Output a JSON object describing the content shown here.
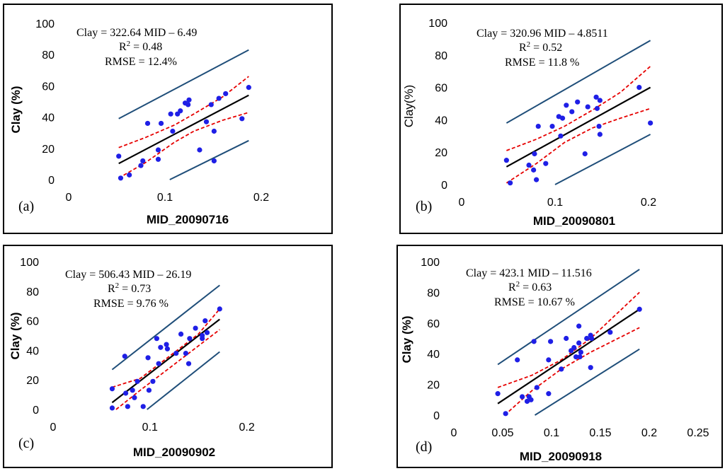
{
  "chart_data": [
    {
      "type": "scatter",
      "panel_label": "(a)",
      "xlabel": "MID_20090716",
      "ylabel": "Clay (%)",
      "ylabel_bold": true,
      "xlim": [
        0,
        0.25
      ],
      "ylim": [
        0,
        100
      ],
      "xticks": [
        "0",
        "0.1",
        "0.2"
      ],
      "xtick_values": [
        0,
        0.1,
        0.2
      ],
      "yticks": [
        "0",
        "20",
        "40",
        "60",
        "80",
        "100"
      ],
      "ytick_values": [
        0,
        20,
        40,
        60,
        80,
        100
      ],
      "annotation": {
        "line1": "Clay = 322.64 MID – 6.49",
        "line2_prefix": "R",
        "line2_sup": "2",
        "line2_suffix": "= 0.48",
        "line3": "RMSE = 12.4%"
      },
      "points": [
        [
          0.052,
          15
        ],
        [
          0.054,
          1
        ],
        [
          0.063,
          3
        ],
        [
          0.075,
          9
        ],
        [
          0.077,
          12
        ],
        [
          0.082,
          36
        ],
        [
          0.093,
          13
        ],
        [
          0.093,
          19
        ],
        [
          0.096,
          36
        ],
        [
          0.106,
          42
        ],
        [
          0.108,
          31
        ],
        [
          0.113,
          42
        ],
        [
          0.116,
          44
        ],
        [
          0.121,
          49
        ],
        [
          0.124,
          48
        ],
        [
          0.125,
          51
        ],
        [
          0.136,
          19
        ],
        [
          0.143,
          37
        ],
        [
          0.148,
          48
        ],
        [
          0.151,
          31
        ],
        [
          0.151,
          12
        ],
        [
          0.156,
          52
        ],
        [
          0.163,
          55
        ],
        [
          0.18,
          39
        ],
        [
          0.187,
          59
        ]
      ],
      "fit": [
        [
          0.052,
          10.3
        ],
        [
          0.187,
          54
        ]
      ],
      "ci_upper": [
        [
          0.052,
          20.5
        ],
        [
          0.08,
          27
        ],
        [
          0.11,
          35
        ],
        [
          0.13,
          42
        ],
        [
          0.16,
          53
        ],
        [
          0.187,
          66
        ]
      ],
      "ci_lower": [
        [
          0.052,
          1
        ],
        [
          0.08,
          11
        ],
        [
          0.11,
          24
        ],
        [
          0.13,
          31
        ],
        [
          0.16,
          38
        ],
        [
          0.187,
          43
        ]
      ],
      "pi_upper": [
        [
          0.052,
          39
        ],
        [
          0.187,
          83
        ]
      ],
      "pi_lower": [
        [
          0.105,
          0
        ],
        [
          0.187,
          25
        ]
      ],
      "colors": {
        "points": "#1f1fe6",
        "fit": "#000000",
        "ci": "#e60000",
        "pi": "#1f4e79"
      }
    },
    {
      "type": "scatter",
      "panel_label": "(b)",
      "xlabel": "MID_20090801",
      "ylabel": "Clay(%)",
      "ylabel_bold": false,
      "xlim": [
        0,
        0.25
      ],
      "ylim": [
        0,
        100
      ],
      "xticks": [
        "0",
        "0.1",
        "0.2"
      ],
      "xtick_values": [
        0,
        0.1,
        0.2
      ],
      "yticks": [
        "0",
        "20",
        "40",
        "60",
        "80",
        "100"
      ],
      "ytick_values": [
        0,
        20,
        40,
        60,
        80,
        100
      ],
      "annotation": {
        "line1": "Clay = 320.96 MID – 4.8511",
        "line2_prefix": "R",
        "line2_sup": "2",
        "line2_suffix": "= 0.52",
        "line3": "RMSE = 11.8 %"
      },
      "points": [
        [
          0.048,
          15
        ],
        [
          0.052,
          1
        ],
        [
          0.072,
          12
        ],
        [
          0.077,
          9
        ],
        [
          0.078,
          19
        ],
        [
          0.08,
          3
        ],
        [
          0.082,
          36
        ],
        [
          0.09,
          13
        ],
        [
          0.097,
          36
        ],
        [
          0.104,
          42
        ],
        [
          0.106,
          30
        ],
        [
          0.108,
          41
        ],
        [
          0.112,
          49
        ],
        [
          0.118,
          45
        ],
        [
          0.124,
          51
        ],
        [
          0.132,
          19
        ],
        [
          0.135,
          48
        ],
        [
          0.144,
          54
        ],
        [
          0.145,
          47
        ],
        [
          0.147,
          36
        ],
        [
          0.148,
          31
        ],
        [
          0.148,
          52
        ],
        [
          0.19,
          60
        ],
        [
          0.202,
          38
        ]
      ],
      "fit": [
        [
          0.048,
          11
        ],
        [
          0.202,
          60
        ]
      ],
      "ci_upper": [
        [
          0.048,
          21
        ],
        [
          0.08,
          28
        ],
        [
          0.11,
          36
        ],
        [
          0.14,
          46
        ],
        [
          0.17,
          57
        ],
        [
          0.202,
          73
        ]
      ],
      "ci_lower": [
        [
          0.048,
          1
        ],
        [
          0.08,
          13
        ],
        [
          0.11,
          26
        ],
        [
          0.14,
          35
        ],
        [
          0.17,
          41
        ],
        [
          0.202,
          47
        ]
      ],
      "pi_upper": [
        [
          0.048,
          38
        ],
        [
          0.202,
          89
        ]
      ],
      "pi_lower": [
        [
          0.1,
          0
        ],
        [
          0.202,
          31
        ]
      ],
      "colors": {
        "points": "#1f1fe6",
        "fit": "#000000",
        "ci": "#e60000",
        "pi": "#1f4e79"
      }
    },
    {
      "type": "scatter",
      "panel_label": "(c)",
      "xlabel": "MID_20090902",
      "ylabel": "Clay (%)",
      "ylabel_bold": true,
      "xlim": [
        0,
        0.25
      ],
      "ylim": [
        0,
        100
      ],
      "xticks": [
        "0",
        "0.1",
        "0.2"
      ],
      "xtick_values": [
        0,
        0.1,
        0.2
      ],
      "yticks": [
        "0",
        "20",
        "40",
        "60",
        "80",
        "100"
      ],
      "ytick_values": [
        0,
        20,
        40,
        60,
        80,
        100
      ],
      "annotation": {
        "line1": "Clay = 506.43 MID – 26.19",
        "line2_prefix": "R",
        "line2_sup": "2",
        "line2_suffix": "= 0.73",
        "line3": "RMSE = 9.76 %"
      },
      "points": [
        [
          0.061,
          14
        ],
        [
          0.061,
          1
        ],
        [
          0.074,
          36
        ],
        [
          0.075,
          11
        ],
        [
          0.077,
          2
        ],
        [
          0.082,
          13
        ],
        [
          0.084,
          8
        ],
        [
          0.087,
          19
        ],
        [
          0.093,
          2
        ],
        [
          0.098,
          35
        ],
        [
          0.099,
          13
        ],
        [
          0.103,
          19
        ],
        [
          0.107,
          48
        ],
        [
          0.109,
          31
        ],
        [
          0.111,
          42
        ],
        [
          0.117,
          44
        ],
        [
          0.118,
          41
        ],
        [
          0.127,
          38
        ],
        [
          0.132,
          51
        ],
        [
          0.137,
          38
        ],
        [
          0.14,
          31
        ],
        [
          0.141,
          48
        ],
        [
          0.147,
          55
        ],
        [
          0.154,
          48
        ],
        [
          0.154,
          50
        ],
        [
          0.157,
          60
        ],
        [
          0.159,
          52
        ],
        [
          0.172,
          68
        ]
      ],
      "fit": [
        [
          0.061,
          4.7
        ],
        [
          0.172,
          61
        ]
      ],
      "ci_upper": [
        [
          0.061,
          15
        ],
        [
          0.09,
          21
        ],
        [
          0.12,
          36
        ],
        [
          0.15,
          51
        ],
        [
          0.172,
          68
        ]
      ],
      "ci_lower": [
        [
          0.065,
          0
        ],
        [
          0.09,
          13
        ],
        [
          0.12,
          28
        ],
        [
          0.15,
          43
        ],
        [
          0.172,
          54
        ]
      ],
      "pi_upper": [
        [
          0.061,
          27
        ],
        [
          0.172,
          84
        ]
      ],
      "pi_lower": [
        [
          0.097,
          0
        ],
        [
          0.172,
          39
        ]
      ],
      "colors": {
        "points": "#1f1fe6",
        "fit": "#000000",
        "ci": "#e60000",
        "pi": "#1f4e79"
      }
    },
    {
      "type": "scatter",
      "panel_label": "(d)",
      "xlabel": "MID_20090918",
      "ylabel": "Clay (%)",
      "ylabel_bold": true,
      "xlim": [
        0,
        0.25
      ],
      "ylim": [
        0,
        100
      ],
      "xticks": [
        "0",
        "0.05",
        "0.1",
        "0.15",
        "0.2",
        "0.25"
      ],
      "xtick_values": [
        0,
        0.05,
        0.1,
        0.15,
        0.2,
        0.25
      ],
      "yticks": [
        "0",
        "20",
        "40",
        "60",
        "80",
        "100"
      ],
      "ytick_values": [
        0,
        20,
        40,
        60,
        80,
        100
      ],
      "annotation": {
        "line1": "Clay = 423.1 MID – 11.516",
        "line2_prefix": "R",
        "line2_sup": "2",
        "line2_suffix": "= 0.63",
        "line3": "RMSE = 10.67 %"
      },
      "points": [
        [
          0.045,
          14
        ],
        [
          0.053,
          1
        ],
        [
          0.065,
          36
        ],
        [
          0.07,
          12
        ],
        [
          0.075,
          9
        ],
        [
          0.077,
          12
        ],
        [
          0.079,
          10
        ],
        [
          0.082,
          48
        ],
        [
          0.085,
          18
        ],
        [
          0.097,
          14
        ],
        [
          0.097,
          36
        ],
        [
          0.099,
          48
        ],
        [
          0.11,
          30
        ],
        [
          0.115,
          50
        ],
        [
          0.12,
          42
        ],
        [
          0.123,
          44
        ],
        [
          0.125,
          38
        ],
        [
          0.128,
          58
        ],
        [
          0.128,
          47
        ],
        [
          0.129,
          38
        ],
        [
          0.13,
          41
        ],
        [
          0.136,
          50
        ],
        [
          0.14,
          52
        ],
        [
          0.14,
          31
        ],
        [
          0.141,
          50
        ],
        [
          0.16,
          54
        ],
        [
          0.19,
          69
        ]
      ],
      "fit": [
        [
          0.045,
          7.5
        ],
        [
          0.19,
          69
        ]
      ],
      "ci_upper": [
        [
          0.045,
          18
        ],
        [
          0.08,
          26
        ],
        [
          0.11,
          36
        ],
        [
          0.14,
          50
        ],
        [
          0.19,
          80
        ]
      ],
      "ci_lower": [
        [
          0.052,
          0
        ],
        [
          0.08,
          16
        ],
        [
          0.11,
          30
        ],
        [
          0.14,
          41
        ],
        [
          0.19,
          57
        ]
      ],
      "pi_upper": [
        [
          0.045,
          33
        ],
        [
          0.19,
          95
        ]
      ],
      "pi_lower": [
        [
          0.083,
          0
        ],
        [
          0.19,
          43
        ]
      ],
      "colors": {
        "points": "#1f1fe6",
        "fit": "#000000",
        "ci": "#e60000",
        "pi": "#1f4e79"
      }
    }
  ]
}
